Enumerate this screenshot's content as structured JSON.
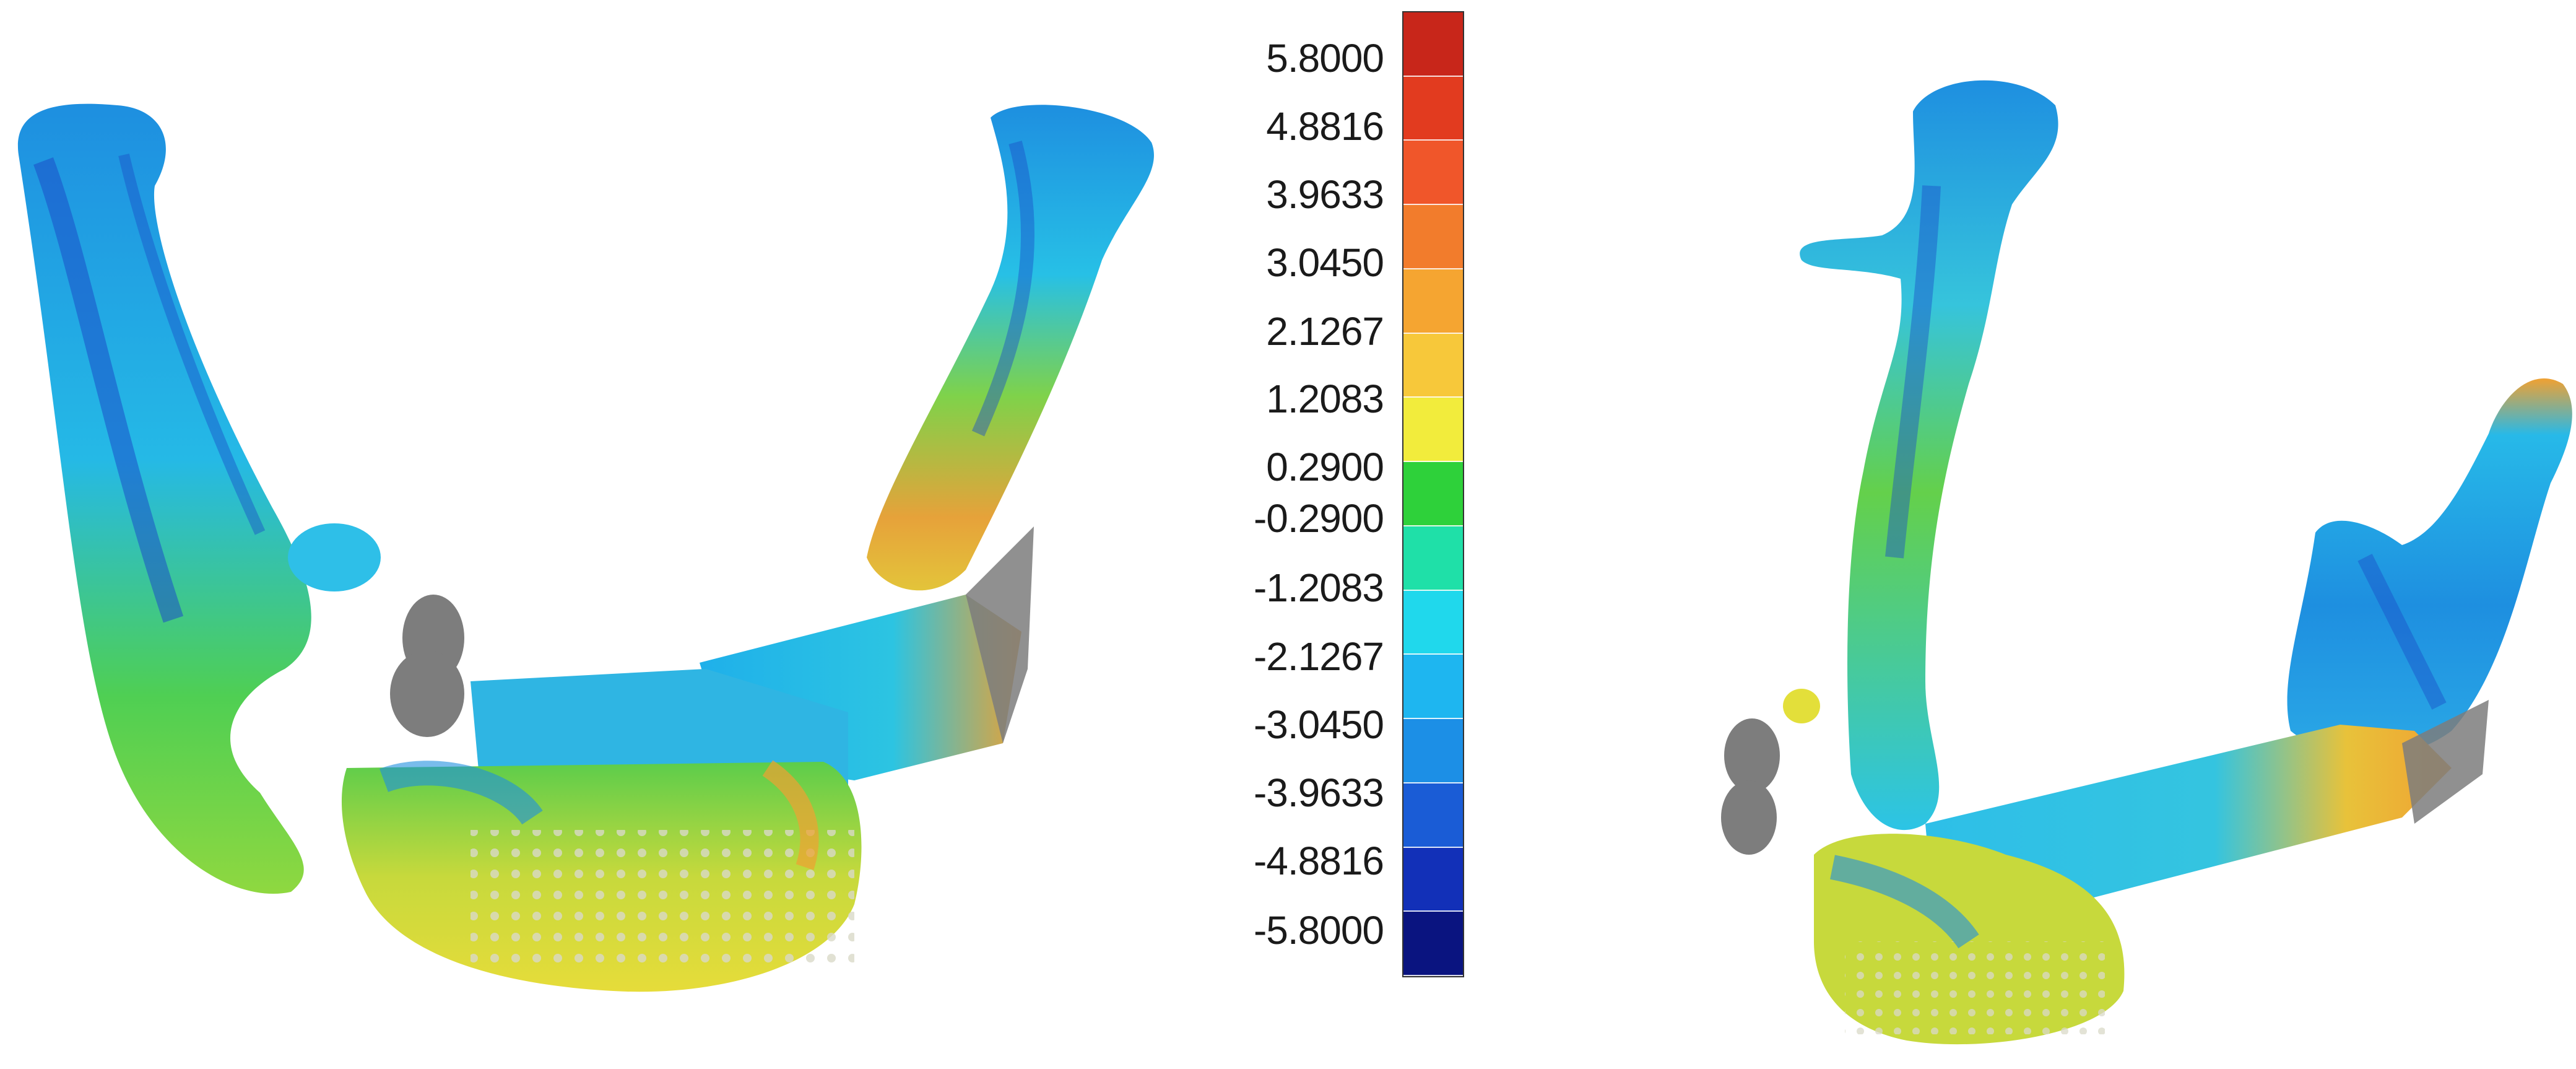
{
  "colorbar": {
    "labels": [
      "5.8000",
      "4.8816",
      "3.9633",
      "3.0450",
      "2.1267",
      "1.2083",
      "0.2900",
      "-0.2900",
      "-1.2083",
      "-2.1267",
      "-3.0450",
      "-3.9633",
      "-4.8816",
      "-5.8000"
    ],
    "colors": [
      "#c8261a",
      "#e23b1f",
      "#f0562a",
      "#f27c2c",
      "#f5a531",
      "#f7c83a",
      "#f2ec3c",
      "#2ed13a",
      "#1fe0a8",
      "#20d8ec",
      "#1eb6f0",
      "#1c8fe6",
      "#1a5cd6",
      "#1230b8",
      "#0a1480"
    ]
  },
  "views": {
    "front": "mandible-front-view",
    "oblique": "mandible-oblique-view"
  },
  "surface_palette": {
    "blue": "#1e8fe0",
    "dark_blue": "#1b4fc8",
    "cyan": "#25c2ea",
    "green": "#57d04a",
    "yellow": "#e3df3a",
    "orange": "#f0a132",
    "gray": "#7d7d7d"
  }
}
